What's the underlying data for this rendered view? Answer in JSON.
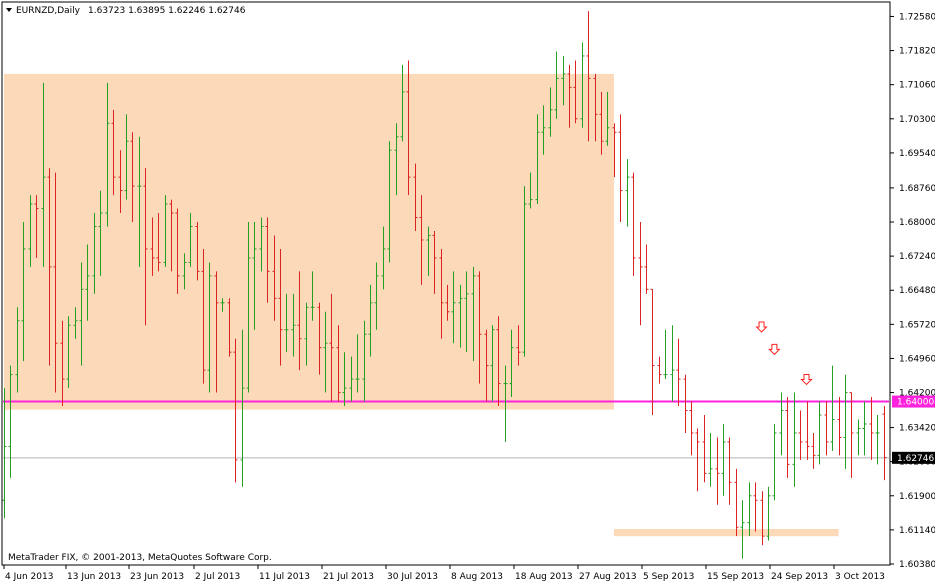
{
  "header": {
    "symbol": "EURNZD,Daily",
    "ohlc": "1.63723 1.63895 1.62246 1.62746"
  },
  "copyright": "MetaTrader FIX, © 2001-2013, MetaQuotes Software Corp.",
  "colors": {
    "up_bar": "#22a022",
    "down_bar": "#dd2222",
    "zone": "#fcd9b8",
    "support_line": "#ff22dd",
    "current_price_line": "#b4b4b4",
    "arrow": "#ff2020"
  },
  "chart_data": {
    "type": "ohlc",
    "ylim": [
      1.6038,
      1.7288
    ],
    "y_ticks": [
      "1.72580",
      "1.71820",
      "1.71060",
      "1.70300",
      "1.69540",
      "1.68760",
      "1.68000",
      "1.67240",
      "1.66480",
      "1.65720",
      "1.64960",
      "1.64200",
      "1.63420",
      "1.62660",
      "1.61900",
      "1.61140",
      "1.60380"
    ],
    "x_labels": [
      "4 Jun 2013",
      "13 Jun 2013",
      "23 Jun 2013",
      "2 Jul 2013",
      "11 Jul 2013",
      "21 Jul 2013",
      "30 Jul 2013",
      "8 Aug 2013",
      "18 Aug 2013",
      "27 Aug 2013",
      "5 Sep 2013",
      "15 Sep 2013",
      "24 Sep 2013",
      "3 Oct 2013"
    ],
    "support_level": "1.64000",
    "current_price": "1.62746",
    "zones": [
      {
        "from": 0,
        "to": 95,
        "low": 1.6382,
        "high": 1.713
      },
      {
        "from": 95,
        "to": 130,
        "low": 1.61,
        "high": 1.6116
      }
    ],
    "signal_arrows": [
      {
        "bar": 118,
        "price": 1.6555
      },
      {
        "bar": 120,
        "price": 1.6505
      },
      {
        "bar": 125,
        "price": 1.6438
      }
    ],
    "bars": [
      [
        1.618,
        1.643,
        1.614,
        1.63
      ],
      [
        1.63,
        1.648,
        1.623,
        1.646
      ],
      [
        1.646,
        1.661,
        1.642,
        1.658
      ],
      [
        1.658,
        1.68,
        1.649,
        1.674
      ],
      [
        1.674,
        1.686,
        1.67,
        1.684
      ],
      [
        1.684,
        1.686,
        1.672,
        1.683
      ],
      [
        1.683,
        1.711,
        1.67,
        1.69
      ],
      [
        1.69,
        1.692,
        1.648,
        1.67
      ],
      [
        1.67,
        1.691,
        1.642,
        1.653
      ],
      [
        1.653,
        1.658,
        1.639,
        1.645
      ],
      [
        1.645,
        1.659,
        1.643,
        1.657
      ],
      [
        1.657,
        1.661,
        1.654,
        1.658
      ],
      [
        1.658,
        1.671,
        1.648,
        1.665
      ],
      [
        1.665,
        1.675,
        1.658,
        1.668
      ],
      [
        1.668,
        1.682,
        1.664,
        1.679
      ],
      [
        1.679,
        1.687,
        1.668,
        1.682
      ],
      [
        1.682,
        1.711,
        1.679,
        1.702
      ],
      [
        1.702,
        1.705,
        1.686,
        1.69
      ],
      [
        1.69,
        1.696,
        1.682,
        1.687
      ],
      [
        1.687,
        1.704,
        1.685,
        1.698
      ],
      [
        1.698,
        1.7,
        1.68,
        1.688
      ],
      [
        1.688,
        1.699,
        1.67,
        1.688
      ],
      [
        1.688,
        1.692,
        1.657,
        1.674
      ],
      [
        1.674,
        1.681,
        1.668,
        1.672
      ],
      [
        1.672,
        1.682,
        1.669,
        1.671
      ],
      [
        1.671,
        1.686,
        1.67,
        1.684
      ],
      [
        1.684,
        1.685,
        1.669,
        1.682
      ],
      [
        1.682,
        1.683,
        1.664,
        1.668
      ],
      [
        1.668,
        1.673,
        1.665,
        1.671
      ],
      [
        1.671,
        1.682,
        1.67,
        1.679
      ],
      [
        1.679,
        1.68,
        1.667,
        1.669
      ],
      [
        1.669,
        1.674,
        1.644,
        1.647
      ],
      [
        1.647,
        1.671,
        1.642,
        1.668
      ],
      [
        1.668,
        1.669,
        1.642,
        1.662
      ],
      [
        1.662,
        1.663,
        1.66,
        1.662
      ],
      [
        1.662,
        1.663,
        1.65,
        1.651
      ],
      [
        1.651,
        1.654,
        1.622,
        1.627
      ],
      [
        1.627,
        1.656,
        1.621,
        1.643
      ],
      [
        1.643,
        1.68,
        1.642,
        1.672
      ],
      [
        1.672,
        1.68,
        1.656,
        1.674
      ],
      [
        1.674,
        1.681,
        1.669,
        1.679
      ],
      [
        1.679,
        1.681,
        1.662,
        1.669
      ],
      [
        1.669,
        1.677,
        1.658,
        1.663
      ],
      [
        1.663,
        1.674,
        1.648,
        1.656
      ],
      [
        1.656,
        1.664,
        1.651,
        1.656
      ],
      [
        1.656,
        1.664,
        1.65,
        1.657
      ],
      [
        1.657,
        1.669,
        1.647,
        1.654
      ],
      [
        1.654,
        1.662,
        1.648,
        1.661
      ],
      [
        1.661,
        1.669,
        1.658,
        1.661
      ],
      [
        1.661,
        1.662,
        1.646,
        1.652
      ],
      [
        1.652,
        1.66,
        1.642,
        1.653
      ],
      [
        1.653,
        1.664,
        1.64,
        1.652
      ],
      [
        1.652,
        1.657,
        1.64,
        1.642
      ],
      [
        1.642,
        1.651,
        1.639,
        1.643
      ],
      [
        1.643,
        1.65,
        1.64,
        1.645
      ],
      [
        1.645,
        1.655,
        1.642,
        1.645
      ],
      [
        1.645,
        1.658,
        1.64,
        1.655
      ],
      [
        1.655,
        1.666,
        1.65,
        1.662
      ],
      [
        1.662,
        1.671,
        1.656,
        1.668
      ],
      [
        1.668,
        1.679,
        1.665,
        1.674
      ],
      [
        1.674,
        1.698,
        1.671,
        1.696
      ],
      [
        1.696,
        1.702,
        1.686,
        1.699
      ],
      [
        1.699,
        1.715,
        1.698,
        1.709
      ],
      [
        1.709,
        1.716,
        1.686,
        1.69
      ],
      [
        1.69,
        1.693,
        1.678,
        1.681
      ],
      [
        1.681,
        1.686,
        1.666,
        1.676
      ],
      [
        1.676,
        1.679,
        1.668,
        1.677
      ],
      [
        1.677,
        1.678,
        1.664,
        1.672
      ],
      [
        1.672,
        1.674,
        1.654,
        1.662
      ],
      [
        1.662,
        1.666,
        1.658,
        1.66
      ],
      [
        1.66,
        1.669,
        1.653,
        1.662
      ],
      [
        1.662,
        1.666,
        1.652,
        1.663
      ],
      [
        1.663,
        1.669,
        1.651,
        1.664
      ],
      [
        1.664,
        1.67,
        1.649,
        1.668
      ],
      [
        1.668,
        1.669,
        1.644,
        1.655
      ],
      [
        1.655,
        1.656,
        1.64,
        1.648
      ],
      [
        1.648,
        1.657,
        1.64,
        1.656
      ],
      [
        1.656,
        1.659,
        1.639,
        1.644
      ],
      [
        1.644,
        1.648,
        1.631,
        1.644
      ],
      [
        1.644,
        1.656,
        1.641,
        1.652
      ],
      [
        1.652,
        1.657,
        1.648,
        1.651
      ],
      [
        1.651,
        1.688,
        1.65,
        1.684
      ],
      [
        1.684,
        1.691,
        1.683,
        1.685
      ],
      [
        1.685,
        1.704,
        1.684,
        1.7
      ],
      [
        1.7,
        1.706,
        1.695,
        1.701
      ],
      [
        1.701,
        1.71,
        1.699,
        1.705
      ],
      [
        1.705,
        1.718,
        1.703,
        1.712
      ],
      [
        1.712,
        1.717,
        1.706,
        1.713
      ],
      [
        1.713,
        1.715,
        1.701,
        1.71
      ],
      [
        1.71,
        1.716,
        1.702,
        1.703
      ],
      [
        1.703,
        1.72,
        1.701,
        1.717
      ],
      [
        1.717,
        1.727,
        1.698,
        1.712
      ],
      [
        1.712,
        1.713,
        1.698,
        1.704
      ],
      [
        1.704,
        1.709,
        1.695,
        1.698
      ],
      [
        1.698,
        1.709,
        1.697,
        1.701
      ],
      [
        1.701,
        1.702,
        1.69,
        1.7
      ],
      [
        1.7,
        1.704,
        1.68,
        1.687
      ],
      [
        1.687,
        1.694,
        1.679,
        1.69
      ],
      [
        1.69,
        1.691,
        1.668,
        1.672
      ],
      [
        1.672,
        1.68,
        1.657,
        1.67
      ],
      [
        1.67,
        1.675,
        1.664,
        1.665
      ],
      [
        1.665,
        1.665,
        1.637,
        1.648
      ],
      [
        1.648,
        1.65,
        1.644,
        1.646
      ],
      [
        1.646,
        1.656,
        1.645,
        1.646
      ],
      [
        1.646,
        1.657,
        1.64,
        1.647
      ],
      [
        1.647,
        1.654,
        1.639,
        1.645
      ],
      [
        1.645,
        1.646,
        1.633,
        1.638
      ],
      [
        1.638,
        1.64,
        1.628,
        1.633
      ],
      [
        1.633,
        1.634,
        1.62,
        1.631
      ],
      [
        1.631,
        1.637,
        1.622,
        1.624
      ],
      [
        1.624,
        1.633,
        1.621,
        1.625
      ],
      [
        1.625,
        1.632,
        1.617,
        1.624
      ],
      [
        1.624,
        1.635,
        1.619,
        1.631
      ],
      [
        1.631,
        1.632,
        1.617,
        1.622
      ],
      [
        1.622,
        1.625,
        1.61,
        1.612
      ],
      [
        1.612,
        1.618,
        1.605,
        1.613
      ],
      [
        1.613,
        1.622,
        1.61,
        1.619
      ],
      [
        1.619,
        1.622,
        1.611,
        1.618
      ],
      [
        1.618,
        1.62,
        1.608,
        1.61
      ],
      [
        1.61,
        1.621,
        1.609,
        1.619
      ],
      [
        1.619,
        1.635,
        1.618,
        1.633
      ],
      [
        1.633,
        1.642,
        1.628,
        1.638
      ],
      [
        1.638,
        1.641,
        1.623,
        1.626
      ],
      [
        1.626,
        1.642,
        1.621,
        1.633
      ],
      [
        1.633,
        1.638,
        1.627,
        1.631
      ],
      [
        1.631,
        1.64,
        1.627,
        1.63
      ],
      [
        1.63,
        1.633,
        1.625,
        1.628
      ],
      [
        1.628,
        1.64,
        1.626,
        1.637
      ],
      [
        1.637,
        1.64,
        1.628,
        1.631
      ],
      [
        1.631,
        1.648,
        1.629,
        1.636
      ],
      [
        1.636,
        1.641,
        1.628,
        1.632
      ],
      [
        1.632,
        1.646,
        1.625,
        1.642
      ],
      [
        1.642,
        1.642,
        1.623,
        1.633
      ],
      [
        1.633,
        1.636,
        1.628,
        1.634
      ],
      [
        1.634,
        1.64,
        1.628,
        1.635
      ],
      [
        1.635,
        1.641,
        1.627,
        1.633
      ],
      [
        1.633,
        1.637,
        1.626,
        1.633
      ],
      [
        1.6372,
        1.639,
        1.6225,
        1.6275
      ]
    ]
  }
}
